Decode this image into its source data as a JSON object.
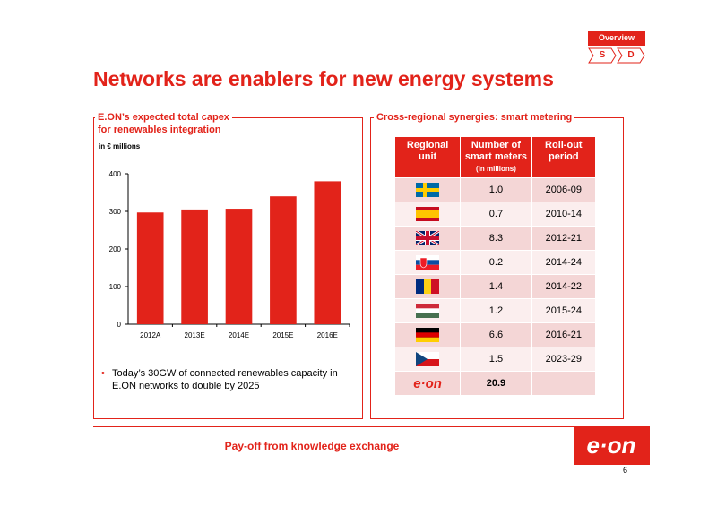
{
  "nav": {
    "overview_label": "Overview",
    "s_label": "S",
    "d_label": "D"
  },
  "title": "Networks are enablers for new energy systems",
  "left_panel": {
    "title_line1": "E.ON’s expected total capex",
    "title_line2": "for renewables integration",
    "unit": "in € millions",
    "bullet": "Today’s 30GW of connected renewables capacity in E.ON networks to double by 2025"
  },
  "chart_data": {
    "type": "bar",
    "categories": [
      "2012A",
      "2013E",
      "2014E",
      "2015E",
      "2016E"
    ],
    "values": [
      297,
      305,
      307,
      340,
      380
    ],
    "ylim": [
      0,
      400
    ],
    "yticks": [
      "400",
      "300",
      "200",
      "100",
      "0"
    ],
    "bar_color": "#e2231a",
    "grid": false
  },
  "right_panel": {
    "title": "Cross-regional synergies: smart metering",
    "headers": {
      "unit": "Regional unit",
      "meters": "Number of smart meters",
      "meters_sub": "(in millions)",
      "period": "Roll-out period"
    },
    "rows": [
      {
        "flag": "sweden-flag",
        "value": "1.0",
        "period": "2006-09"
      },
      {
        "flag": "spain-flag",
        "value": "0.7",
        "period": "2010-14"
      },
      {
        "flag": "uk-flag",
        "value": "8.3",
        "period": "2012-21"
      },
      {
        "flag": "slovakia-flag",
        "value": "0.2",
        "period": "2014-24"
      },
      {
        "flag": "romania-flag",
        "value": "1.4",
        "period": "2014-22"
      },
      {
        "flag": "hungary-flag",
        "value": "1.2",
        "period": "2015-24"
      },
      {
        "flag": "germany-flag",
        "value": "6.6",
        "period": "2016-21"
      },
      {
        "flag": "czech-flag",
        "value": "1.5",
        "period": "2023-29"
      }
    ],
    "total": {
      "logo": "e·on",
      "value": "20.9",
      "period": ""
    }
  },
  "footer": {
    "payoff": "Pay-off from knowledge exchange",
    "logo": "e·on",
    "page": "6"
  },
  "colors": {
    "accent": "#e2231a",
    "row_dark": "#f4d6d6",
    "row_light": "#fbeeee"
  }
}
